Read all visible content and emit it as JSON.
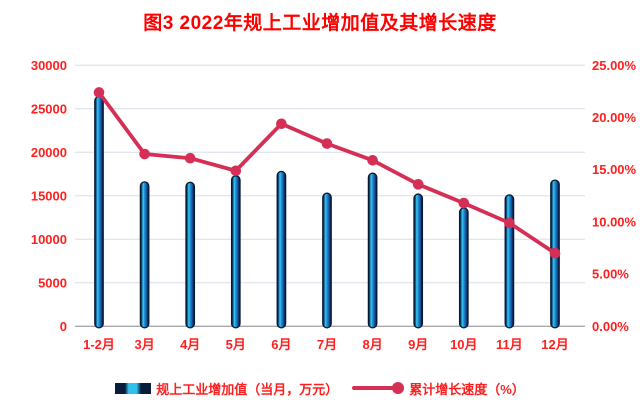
{
  "title": "图3  2022年规上工业增加值及其增长速度",
  "colors": {
    "title": "#FF0000",
    "labels": "#FF1F1F",
    "line": "#D62F55",
    "bar_edge": "#081830",
    "bar_highlight": "#35CCF3",
    "bar_dark": "#0A1C3C",
    "gridline": "#D9DEEA",
    "axis_line": "#A8A8A8"
  },
  "chart_data": {
    "type": "combo-bar-line",
    "title": "图3  2022年规上工业增加值及其增长速度",
    "categories": [
      "1-2月",
      "3月",
      "4月",
      "5月",
      "6月",
      "7月",
      "8月",
      "9月",
      "10月",
      "11月",
      "12月"
    ],
    "series": [
      {
        "name": "规上工业增加值（当月，万元）",
        "type": "bar",
        "axis": "left",
        "values": [
          26400,
          16600,
          16550,
          17300,
          17800,
          15300,
          17600,
          15200,
          13600,
          15100,
          16800
        ]
      },
      {
        "name": "累计增长速度（%）",
        "type": "line",
        "axis": "right",
        "values": [
          22.4,
          16.5,
          16.1,
          14.9,
          19.4,
          17.5,
          15.9,
          13.6,
          11.8,
          9.9,
          7.0
        ]
      }
    ],
    "left_axis": {
      "min": 0,
      "max": 30000,
      "tick_labels": [
        "0",
        "5000",
        "10000",
        "15000",
        "20000",
        "25000",
        "30000"
      ]
    },
    "right_axis": {
      "min": 0,
      "max": 25,
      "tick_labels": [
        "0.00%",
        "5.00%",
        "10.00%",
        "15.00%",
        "20.00%",
        "25.00%"
      ]
    },
    "grid": true,
    "legend_position": "bottom"
  },
  "legend": {
    "bar_label": "规上工业增加值（当月，万元）",
    "line_label": "累计增长速度（%）"
  }
}
